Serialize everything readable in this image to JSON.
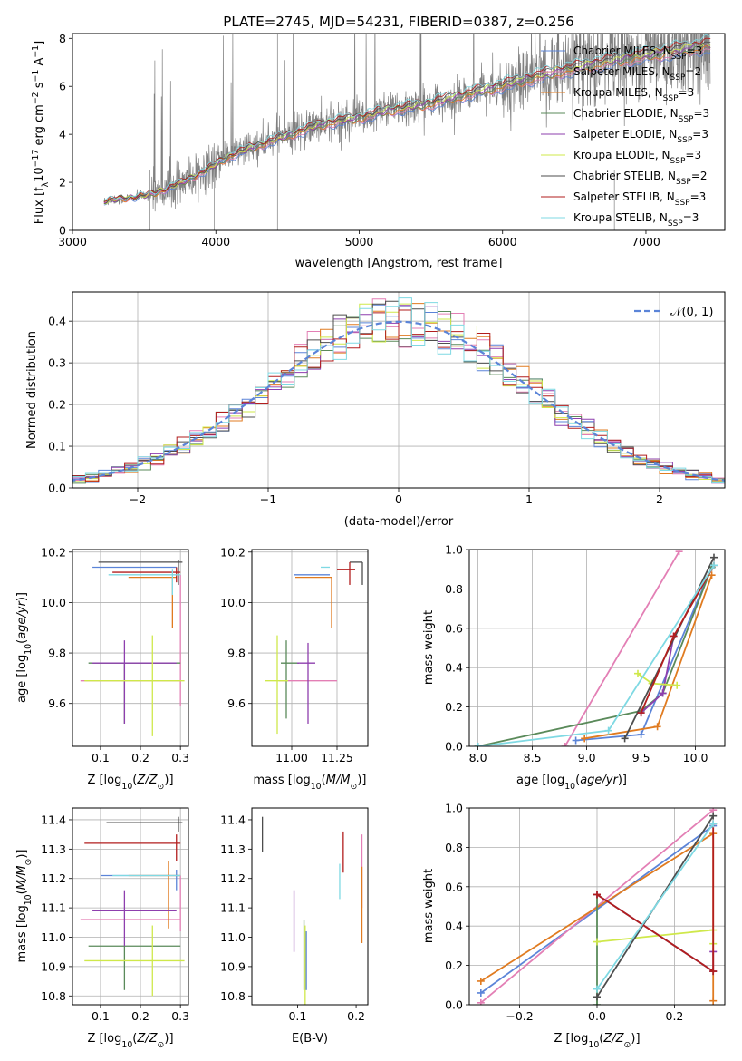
{
  "figure": {
    "title": "PLATE=2745, MJD=54231, FIBERID=0387, z=0.256"
  },
  "colors": {
    "Chabrier MILES": "#5b84d8",
    "Salpeter MILES": "#e37fb5",
    "Kroupa MILES": "#e07b20",
    "Chabrier ELODIE": "#5a8a5a",
    "Salpeter ELODIE": "#8e3fae",
    "Kroupa ELODIE": "#cfe84a",
    "Chabrier STELIB": "#4d4d4d",
    "Salpeter STELIB": "#b21e1e",
    "Kroupa STELIB": "#7fd9e3",
    "data": "#808080"
  },
  "chart_data": [
    {
      "type": "line",
      "panel": "spectrum",
      "title": "PLATE=2745, MJD=54231, FIBERID=0387, z=0.256",
      "xlabel": "wavelength [Angstrom, rest frame]",
      "ylabel": "Flux [f_λ 10^-17 erg cm^-2 s^-1 A^-1]",
      "xlim": [
        3000,
        7550
      ],
      "ylim": [
        0,
        8.2
      ],
      "xticks": [
        3000,
        4000,
        5000,
        6000,
        7000
      ],
      "yticks": [
        0,
        2,
        4,
        6,
        8
      ],
      "grid": false,
      "legend_position": "top-right",
      "legend": [
        {
          "name": "Chabrier MILES",
          "nssp": "3"
        },
        {
          "name": "Salpeter MILES",
          "nssp": "2"
        },
        {
          "name": "Kroupa MILES",
          "nssp": "3"
        },
        {
          "name": "Chabrier ELODIE",
          "nssp": "3"
        },
        {
          "name": "Salpeter ELODIE",
          "nssp": "3"
        },
        {
          "name": "Kroupa ELODIE",
          "nssp": "3"
        },
        {
          "name": "Chabrier STELIB",
          "nssp": "2"
        },
        {
          "name": "Salpeter STELIB",
          "nssp": "3"
        },
        {
          "name": "Kroupa STELIB",
          "nssp": "3"
        }
      ],
      "model_x": [
        3220,
        3300,
        3400,
        3500,
        3600,
        3700,
        3800,
        3900,
        4000,
        4100,
        4200,
        4300,
        4400,
        4500,
        4600,
        4700,
        4800,
        4900,
        5000,
        5100,
        5200,
        5300,
        5400,
        5500,
        5600,
        5700,
        5800,
        5900,
        6000,
        6100,
        6200,
        6300,
        6400,
        6500,
        6600,
        6700,
        6800,
        6900,
        7000,
        7100,
        7200,
        7300,
        7400,
        7500
      ],
      "model_y": [
        1.2,
        1.3,
        1.35,
        1.45,
        1.6,
        1.85,
        2.1,
        2.4,
        2.75,
        3.1,
        3.35,
        3.55,
        3.75,
        3.95,
        4.15,
        4.35,
        4.5,
        4.6,
        4.7,
        4.85,
        5.0,
        5.1,
        5.2,
        5.3,
        5.45,
        5.6,
        5.75,
        5.9,
        6.05,
        6.2,
        6.35,
        6.5,
        6.65,
        6.75,
        6.9,
        7.0,
        7.1,
        7.2,
        7.3,
        7.4,
        7.5,
        7.6,
        7.7,
        7.8
      ],
      "data_x_range": [
        3220,
        7450
      ]
    },
    {
      "type": "line",
      "panel": "residual histogram",
      "xlabel": "(data-model)/error",
      "ylabel": "Normed distribution",
      "xlim": [
        -2.5,
        2.5
      ],
      "ylim": [
        0,
        0.47
      ],
      "xticks": [
        -2,
        -1,
        0,
        1,
        2
      ],
      "yticks": [
        0,
        0.1,
        0.2,
        0.3,
        0.4
      ],
      "grid": true,
      "legend_position": "top-right",
      "legend_label": "𝒩(0, 1)",
      "reference_curve": "normal(0,1)",
      "bin_width": 0.1
    },
    {
      "type": "scatter",
      "panel": "age vs Z",
      "xlabel": "Z [log10(Z/Z⊙)]",
      "ylabel": "age  [log10(age/yr)]",
      "xlim": [
        0.03,
        0.32
      ],
      "ylim": [
        9.43,
        10.21
      ],
      "xticks": [
        0.1,
        0.2,
        0.3
      ],
      "yticks": [
        9.6,
        9.8,
        10.0,
        10.2
      ],
      "grid": true,
      "points": [
        {
          "series": "Chabrier MILES",
          "x": 0.17,
          "y": 10.14,
          "xerr": [
            0.09,
            0.12
          ],
          "yerr": [
            0.0,
            0.0
          ]
        },
        {
          "series": "Salpeter MILES",
          "x": 0.3,
          "y": 9.69,
          "xerr": [
            0.25,
            0.0
          ],
          "yerr": [
            0.1,
            0.42
          ]
        },
        {
          "series": "Kroupa MILES",
          "x": 0.28,
          "y": 10.1,
          "xerr": [
            0.11,
            0.01
          ],
          "yerr": [
            0.2,
            0.0
          ]
        },
        {
          "series": "Chabrier ELODIE",
          "x": 0.16,
          "y": 9.76,
          "xerr": [
            0.09,
            0.14
          ],
          "yerr": [
            0.24,
            0.0
          ]
        },
        {
          "series": "Salpeter ELODIE",
          "x": 0.16,
          "y": 9.76,
          "xerr": [
            0.08,
            0.13
          ],
          "yerr": [
            0.24,
            0.09
          ]
        },
        {
          "series": "Kroupa ELODIE",
          "x": 0.23,
          "y": 9.69,
          "xerr": [
            0.17,
            0.08
          ],
          "yerr": [
            0.22,
            0.18
          ]
        },
        {
          "series": "Chabrier STELIB",
          "x": 0.295,
          "y": 10.16,
          "xerr": [
            0.2,
            0.01
          ],
          "yerr": [
            0.09,
            0.01
          ]
        },
        {
          "series": "Salpeter STELIB",
          "x": 0.29,
          "y": 10.12,
          "xerr": [
            0.16,
            0.01
          ],
          "yerr": [
            0.04,
            0.02
          ]
        },
        {
          "series": "Kroupa STELIB",
          "x": 0.28,
          "y": 10.11,
          "xerr": [
            0.16,
            0.02
          ],
          "yerr": [
            0.08,
            0.02
          ]
        }
      ]
    },
    {
      "type": "scatter",
      "panel": "age vs mass",
      "xlabel": "mass [log10(M/M⊙)]",
      "ylabel": "",
      "xlim": [
        10.78,
        11.42
      ],
      "ylim": [
        9.43,
        10.21
      ],
      "xticks": [
        11.0,
        11.25
      ],
      "yticks": [
        9.6,
        9.8,
        10.0,
        10.2
      ],
      "grid": true,
      "points": [
        {
          "series": "Chabrier MILES",
          "x": 11.21,
          "y": 10.11,
          "xerr": [
            0.2,
            0.0
          ],
          "yerr": [
            0.0,
            0.0
          ]
        },
        {
          "series": "Salpeter MILES",
          "x": 11.06,
          "y": 9.69,
          "xerr": [
            0.13,
            0.19
          ],
          "yerr": [
            0.0,
            0.0
          ]
        },
        {
          "series": "Kroupa MILES",
          "x": 11.22,
          "y": 10.1,
          "xerr": [
            0.2,
            0.0
          ],
          "yerr": [
            0.2,
            0.0
          ]
        },
        {
          "series": "Chabrier ELODIE",
          "x": 10.97,
          "y": 9.76,
          "xerr": [
            0.03,
            0.07
          ],
          "yerr": [
            0.22,
            0.09
          ]
        },
        {
          "series": "Salpeter ELODIE",
          "x": 11.09,
          "y": 9.76,
          "xerr": [
            0.06,
            0.04
          ],
          "yerr": [
            0.24,
            0.08
          ]
        },
        {
          "series": "Kroupa ELODIE",
          "x": 10.92,
          "y": 9.69,
          "xerr": [
            0.07,
            0.06
          ],
          "yerr": [
            0.21,
            0.18
          ]
        },
        {
          "series": "Chabrier STELIB",
          "x": 11.39,
          "y": 10.16,
          "xerr": [
            0.07,
            0.0
          ],
          "yerr": [
            0.09,
            0.0
          ]
        },
        {
          "series": "Salpeter STELIB",
          "x": 11.32,
          "y": 10.13,
          "xerr": [
            0.07,
            0.03
          ],
          "yerr": [
            0.06,
            0.03
          ]
        },
        {
          "series": "Kroupa STELIB",
          "x": 11.21,
          "y": 10.14,
          "xerr": [
            0.05,
            0.0
          ],
          "yerr": [
            0.0,
            0.0
          ]
        }
      ]
    },
    {
      "type": "line",
      "panel": "mass weight vs age",
      "xlabel": "age  [log10(age/yr)]",
      "ylabel": "mass weight",
      "xlim": [
        7.92,
        10.27
      ],
      "ylim": [
        0,
        1.0
      ],
      "xticks": [
        8.0,
        8.5,
        9.0,
        9.5,
        10.0
      ],
      "yticks": [
        0.0,
        0.2,
        0.4,
        0.6,
        0.8,
        1.0
      ],
      "grid": true,
      "series": [
        {
          "name": "Chabrier MILES",
          "x": [
            8.9,
            9.5,
            10.15
          ],
          "y": [
            0.03,
            0.06,
            0.91
          ]
        },
        {
          "name": "Salpeter MILES",
          "x": [
            8.8,
            9.85
          ],
          "y": [
            0.0,
            0.99
          ]
        },
        {
          "name": "Kroupa MILES",
          "x": [
            8.98,
            9.65,
            10.15
          ],
          "y": [
            0.04,
            0.1,
            0.87
          ]
        },
        {
          "name": "Chabrier ELODIE",
          "x": [
            8.0,
            9.5,
            9.7,
            10.15
          ],
          "y": [
            0.0,
            0.18,
            0.27,
            0.91
          ]
        },
        {
          "name": "Salpeter ELODIE",
          "x": [
            9.5,
            9.7,
            9.8
          ],
          "y": [
            0.17,
            0.27,
            0.56
          ]
        },
        {
          "name": "Kroupa ELODIE",
          "x": [
            9.47,
            9.6,
            9.83
          ],
          "y": [
            0.37,
            0.32,
            0.31
          ]
        },
        {
          "name": "Chabrier STELIB",
          "x": [
            9.35,
            10.17
          ],
          "y": [
            0.04,
            0.96
          ]
        },
        {
          "name": "Salpeter STELIB",
          "x": [
            9.5,
            9.8,
            10.17
          ],
          "y": [
            0.17,
            0.56,
            0.92
          ]
        },
        {
          "name": "Kroupa STELIB",
          "x": [
            8.0,
            9.2,
            10.17
          ],
          "y": [
            0.0,
            0.08,
            0.92
          ]
        }
      ]
    },
    {
      "type": "scatter",
      "panel": "mass vs Z",
      "xlabel": "Z [log10(Z/Z⊙)]",
      "ylabel": "mass [log10(M/M⊙)]",
      "xlim": [
        0.03,
        0.32
      ],
      "ylim": [
        10.77,
        11.44
      ],
      "xticks": [
        0.1,
        0.2,
        0.3
      ],
      "yticks": [
        10.8,
        10.9,
        11.0,
        11.1,
        11.2,
        11.3,
        11.4
      ],
      "grid": true,
      "points": [
        {
          "series": "Chabrier MILES",
          "x": 0.29,
          "y": 11.21,
          "xerr": [
            0.19,
            0.01
          ],
          "yerr": [
            0.05,
            0.02
          ]
        },
        {
          "series": "Salpeter MILES",
          "x": 0.3,
          "y": 11.06,
          "xerr": [
            0.25,
            0.0
          ],
          "yerr": [
            0.04,
            0.15
          ]
        },
        {
          "series": "Kroupa MILES",
          "x": 0.27,
          "y": 11.21,
          "xerr": [
            0.1,
            0.03
          ],
          "yerr": [
            0.18,
            0.05
          ]
        },
        {
          "series": "Chabrier ELODIE",
          "x": 0.16,
          "y": 10.97,
          "xerr": [
            0.09,
            0.14
          ],
          "yerr": [
            0.15,
            0.0
          ]
        },
        {
          "series": "Salpeter ELODIE",
          "x": 0.16,
          "y": 11.09,
          "xerr": [
            0.08,
            0.13
          ],
          "yerr": [
            0.12,
            0.07
          ]
        },
        {
          "series": "Kroupa ELODIE",
          "x": 0.23,
          "y": 10.92,
          "xerr": [
            0.17,
            0.08
          ],
          "yerr": [
            0.12,
            0.12
          ]
        },
        {
          "series": "Chabrier STELIB",
          "x": 0.295,
          "y": 11.39,
          "xerr": [
            0.18,
            0.01
          ],
          "yerr": [
            0.03,
            0.02
          ]
        },
        {
          "series": "Salpeter STELIB",
          "x": 0.29,
          "y": 11.32,
          "xerr": [
            0.23,
            0.01
          ],
          "yerr": [
            0.06,
            0.03
          ]
        },
        {
          "series": "Kroupa STELIB",
          "x": 0.27,
          "y": 11.21,
          "xerr": [
            0.14,
            0.03
          ],
          "yerr": [
            0.0,
            0.0
          ]
        }
      ]
    },
    {
      "type": "scatter",
      "panel": "mass vs E(B-V)",
      "xlabel": "E(B-V)",
      "ylabel": "",
      "xlim": [
        0.022,
        0.22
      ],
      "ylim": [
        10.77,
        11.44
      ],
      "xticks": [
        0.1,
        0.2
      ],
      "yticks": [
        10.8,
        10.9,
        11.0,
        11.1,
        11.2,
        11.3,
        11.4
      ],
      "grid": false,
      "points": [
        {
          "series": "Chabrier MILES",
          "x": 0.115,
          "y": 10.97,
          "yerr": [
            0.15,
            0.05
          ]
        },
        {
          "series": "Salpeter MILES",
          "x": 0.21,
          "y": 11.1,
          "yerr": [
            0.0,
            0.25
          ]
        },
        {
          "series": "Kroupa MILES",
          "x": 0.21,
          "y": 11.1,
          "yerr": [
            0.12,
            0.14
          ]
        },
        {
          "series": "Chabrier ELODIE",
          "x": 0.111,
          "y": 10.94,
          "yerr": [
            0.12,
            0.12
          ]
        },
        {
          "series": "Salpeter ELODIE",
          "x": 0.094,
          "y": 11.05,
          "yerr": [
            0.1,
            0.11
          ]
        },
        {
          "series": "Kroupa ELODIE",
          "x": 0.113,
          "y": 10.92,
          "yerr": [
            0.15,
            0.12
          ]
        },
        {
          "series": "Chabrier STELIB",
          "x": 0.04,
          "y": 11.35,
          "yerr": [
            0.06,
            0.06
          ]
        },
        {
          "series": "Salpeter STELIB",
          "x": 0.178,
          "y": 11.27,
          "yerr": [
            0.05,
            0.09
          ]
        },
        {
          "series": "Kroupa STELIB",
          "x": 0.172,
          "y": 11.19,
          "yerr": [
            0.06,
            0.06
          ]
        }
      ]
    },
    {
      "type": "line",
      "panel": "mass weight vs Z",
      "xlabel": "Z [log10(Z/Z⊙)]",
      "ylabel": "mass weight",
      "xlim": [
        -0.33,
        0.33
      ],
      "ylim": [
        0,
        1.0
      ],
      "xticks": [
        -0.2,
        0.0,
        0.2
      ],
      "yticks": [
        0.0,
        0.2,
        0.4,
        0.6,
        0.8,
        1.0
      ],
      "grid": true,
      "series": [
        {
          "name": "Chabrier MILES",
          "x": [
            -0.3,
            0.3
          ],
          "y": [
            0.06,
            0.91
          ]
        },
        {
          "name": "Salpeter MILES",
          "x": [
            -0.3,
            0.3
          ],
          "y": [
            0.01,
            0.99
          ]
        },
        {
          "name": "Kroupa MILES",
          "x": [
            -0.3,
            0.3,
            0.3
          ],
          "y": [
            0.12,
            0.87,
            0.02
          ]
        },
        {
          "name": "Chabrier ELODIE",
          "x": [
            0.0,
            0.0,
            0.3
          ],
          "y": [
            0.0,
            0.56,
            0.17
          ]
        },
        {
          "name": "Salpeter ELODIE",
          "x": [
            0.0,
            0.3,
            0.3
          ],
          "y": [
            0.56,
            0.17,
            0.27
          ]
        },
        {
          "name": "Kroupa ELODIE",
          "x": [
            0.0,
            0.3,
            0.3
          ],
          "y": [
            0.32,
            0.38,
            0.31
          ]
        },
        {
          "name": "Chabrier STELIB",
          "x": [
            0.0,
            0.3
          ],
          "y": [
            0.04,
            0.96
          ]
        },
        {
          "name": "Salpeter STELIB",
          "x": [
            0.0,
            0.3,
            0.3
          ],
          "y": [
            0.56,
            0.17,
            0.92
          ]
        },
        {
          "name": "Kroupa STELIB",
          "x": [
            0.0,
            0.3
          ],
          "y": [
            0.08,
            0.92
          ]
        }
      ]
    }
  ]
}
